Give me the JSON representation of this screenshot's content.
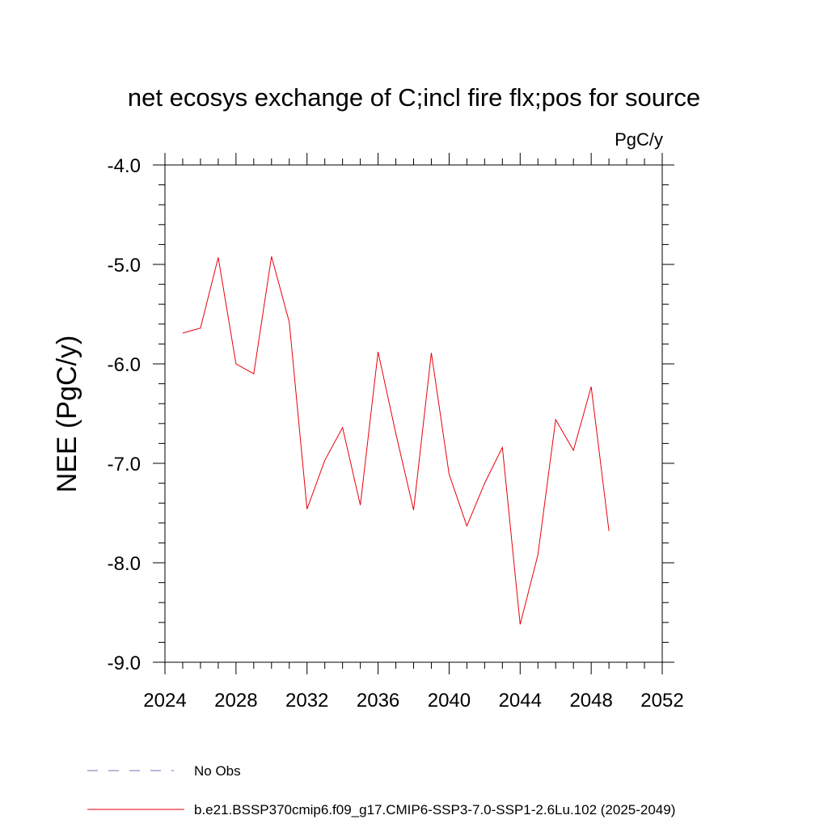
{
  "chart_data": {
    "type": "line",
    "title": "net ecosys exchange of C;incl fire flx;pos for source",
    "units": "PgC/y",
    "ylabel": "NEE  (PgC/y)",
    "xlabel": "",
    "xlim": [
      2024,
      2052
    ],
    "ylim": [
      -9.0,
      -4.0
    ],
    "xticks": [
      2024,
      2028,
      2032,
      2036,
      2040,
      2044,
      2048,
      2052
    ],
    "yticks": [
      -4.0,
      -5.0,
      -6.0,
      -7.0,
      -8.0,
      -9.0
    ],
    "ytick_labels": [
      "-4.0",
      "-5.0",
      "-6.0",
      "-7.0",
      "-8.0",
      "-9.0"
    ],
    "series": [
      {
        "name": "b.e21.BSSP370cmip6.f09_g17.CMIP6-SSP3-7.0-SSP1-2.6Lu.102 (2025-2049)",
        "color": "#e8000b",
        "style": "solid",
        "x": [
          2025,
          2026,
          2027,
          2028,
          2029,
          2030,
          2031,
          2032,
          2033,
          2034,
          2035,
          2036,
          2037,
          2038,
          2039,
          2040,
          2041,
          2042,
          2043,
          2044,
          2045,
          2046,
          2047,
          2048,
          2049
        ],
        "y": [
          -5.69,
          -5.64,
          -4.93,
          -6.0,
          -6.1,
          -4.92,
          -5.58,
          -7.46,
          -6.97,
          -6.64,
          -7.42,
          -5.88,
          -6.7,
          -7.47,
          -5.89,
          -7.11,
          -7.63,
          -7.2,
          -6.84,
          -8.62,
          -7.92,
          -6.56,
          -6.87,
          -6.23,
          -7.68
        ]
      }
    ],
    "legend": {
      "placement": "bottom-left",
      "entries": [
        {
          "label": "No Obs",
          "color": "#7b6fb0",
          "style": "dashed"
        },
        {
          "label": "b.e21.BSSP370cmip6.f09_g17.CMIP6-SSP3-7.0-SSP1-2.6Lu.102 (2025-2049)",
          "color": "#e8000b",
          "style": "solid"
        }
      ]
    }
  }
}
